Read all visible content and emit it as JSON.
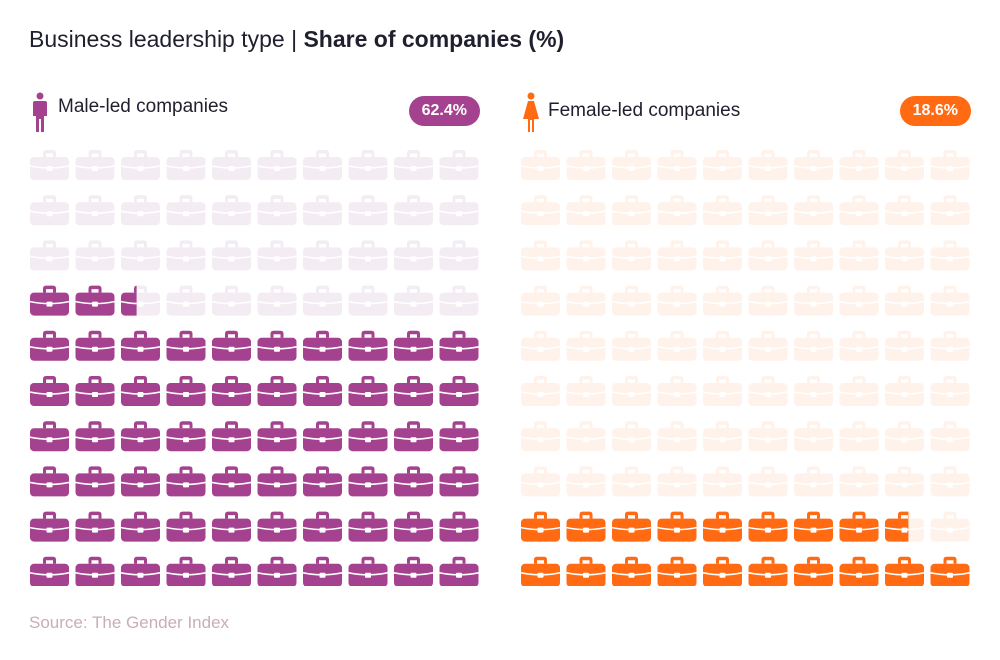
{
  "title": {
    "regular": "Business leadership type | ",
    "bold": "Share of companies (%)"
  },
  "source": "Source: The Gender Index",
  "chart_data": [
    {
      "type": "waffle",
      "series": [
        {
          "name": "Male-led companies",
          "value_label": "62.4%",
          "value": 62.4,
          "color": "#a5428f",
          "faded_color": "#f4ecf3",
          "icon": "briefcase-icon",
          "person_icon": "male-person-icon"
        },
        {
          "name": "Female-led companies",
          "value_label": "18.6%",
          "value": 18.6,
          "color": "#ff6a13",
          "faded_color": "#fff2ea",
          "icon": "briefcase-icon",
          "person_icon": "female-person-icon"
        }
      ],
      "units_total": 100,
      "grid": {
        "rows": 10,
        "cols": 10
      }
    }
  ]
}
